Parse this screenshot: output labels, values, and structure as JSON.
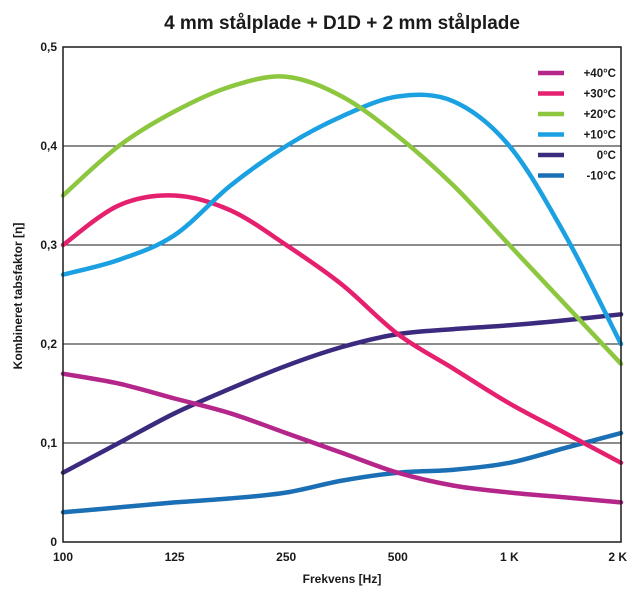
{
  "chart_data": {
    "type": "line",
    "title": "4 mm stålplade + D1D + 2 mm stålplade",
    "xlabel": "Frekvens [Hz]",
    "ylabel": "Kombineret tabsfaktor [η]",
    "categories": [
      "100",
      "125",
      "250",
      "500",
      "1 K",
      "2 K"
    ],
    "y_tick_labels": [
      "0",
      "0,1",
      "0,2",
      "0,3",
      "0,4",
      "0,5"
    ],
    "ylim": [
      0,
      0.5
    ],
    "grid": "horizontal",
    "legend_position": "top-right",
    "series": [
      {
        "name": "+40°C",
        "color": "#b5268a",
        "x": [
          0,
          0.5,
          1,
          1.5,
          2,
          2.5,
          3,
          3.5,
          4,
          4.5,
          5
        ],
        "values": [
          0.17,
          0.16,
          0.145,
          0.13,
          0.11,
          0.09,
          0.07,
          0.057,
          0.05,
          0.045,
          0.04
        ]
      },
      {
        "name": "+30°C",
        "color": "#e5206e",
        "x": [
          0,
          0.5,
          1,
          1.5,
          2,
          2.5,
          3,
          3.5,
          4,
          4.5,
          5
        ],
        "values": [
          0.3,
          0.34,
          0.35,
          0.335,
          0.3,
          0.26,
          0.21,
          0.175,
          0.14,
          0.11,
          0.08
        ]
      },
      {
        "name": "+20°C",
        "color": "#8dc63f",
        "x": [
          0,
          0.5,
          1,
          1.5,
          2,
          2.5,
          3,
          3.5,
          4,
          4.5,
          5
        ],
        "values": [
          0.35,
          0.4,
          0.435,
          0.46,
          0.47,
          0.45,
          0.41,
          0.36,
          0.3,
          0.24,
          0.18
        ]
      },
      {
        "name": "+10°C",
        "color": "#1ba1e2",
        "x": [
          0,
          0.5,
          1,
          1.5,
          2,
          2.5,
          3,
          3.5,
          4,
          4.5,
          5
        ],
        "values": [
          0.27,
          0.285,
          0.31,
          0.36,
          0.4,
          0.43,
          0.45,
          0.445,
          0.4,
          0.31,
          0.2
        ]
      },
      {
        "name": "0°C",
        "color": "#3b2a7e",
        "x": [
          0,
          0.5,
          1,
          1.5,
          2,
          2.5,
          3,
          3.5,
          4,
          4.5,
          5
        ],
        "values": [
          0.07,
          0.1,
          0.13,
          0.155,
          0.178,
          0.197,
          0.21,
          0.215,
          0.219,
          0.224,
          0.23
        ]
      },
      {
        "name": "-10°C",
        "color": "#1b6fb5",
        "x": [
          0,
          0.5,
          1,
          1.5,
          2,
          2.5,
          3,
          3.5,
          4,
          4.5,
          5
        ],
        "values": [
          0.03,
          0.035,
          0.04,
          0.044,
          0.05,
          0.062,
          0.07,
          0.073,
          0.08,
          0.095,
          0.11
        ]
      }
    ]
  }
}
